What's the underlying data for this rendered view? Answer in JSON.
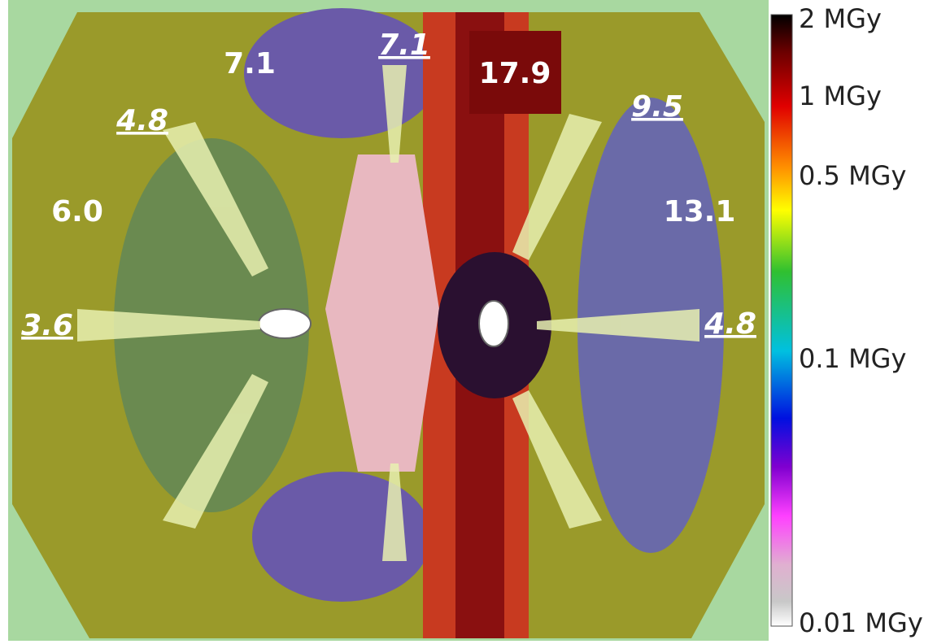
{
  "map": {
    "annotations": [
      "7.1",
      "7.1",
      "17.9",
      "4.8",
      "9.5",
      "6.0",
      "13.1",
      "3.6",
      "4.8"
    ]
  },
  "colorbar": {
    "labels": [
      "2 MGy",
      "1 MGy",
      "0.5 MGy",
      "0.1 MGy",
      "0.01 MGy"
    ]
  }
}
